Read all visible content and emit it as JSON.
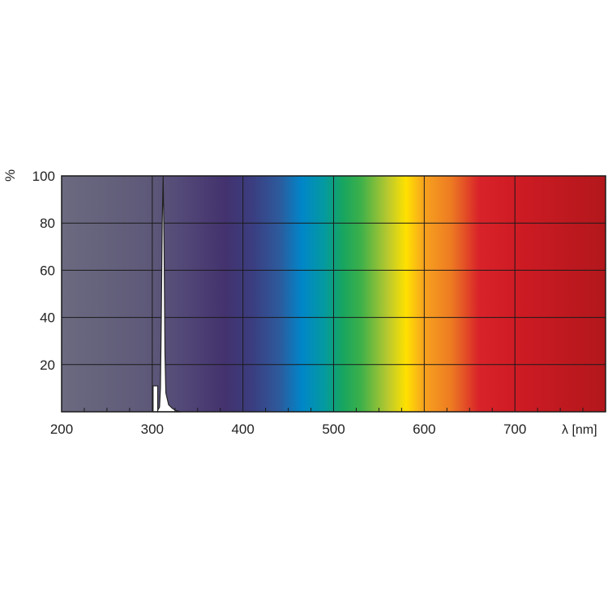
{
  "chart_data": {
    "type": "line",
    "title": "",
    "ylabel": "%",
    "xlabel": "λ [nm]",
    "xlim": [
      200,
      800
    ],
    "ylim": [
      0,
      100
    ],
    "x_ticks": [
      200,
      300,
      400,
      500,
      600,
      700
    ],
    "y_ticks": [
      20,
      40,
      60,
      80,
      100
    ],
    "x_tick_labels": [
      "200",
      "300",
      "400",
      "500",
      "600",
      "700"
    ],
    "y_tick_labels": [
      "20",
      "40",
      "60",
      "80",
      "100"
    ],
    "grid": true,
    "background": "visible spectrum color gradient",
    "series": [
      {
        "kind": "line-filled",
        "color": "#ffffff",
        "x": [
          305,
          308,
          309,
          310,
          311,
          312,
          313,
          314,
          315,
          318,
          322,
          326,
          331
        ],
        "y": [
          0,
          2,
          10,
          40,
          80,
          100,
          70,
          25,
          8,
          3,
          1.5,
          0.5,
          0
        ]
      },
      {
        "kind": "bar",
        "color": "#ffffff",
        "x_range": [
          300,
          306
        ],
        "y": 11
      }
    ],
    "spectrum_colors": [
      {
        "nm": 200,
        "color": "#6b6a80"
      },
      {
        "nm": 300,
        "color": "#5d5878"
      },
      {
        "nm": 330,
        "color": "#544a78"
      },
      {
        "nm": 380,
        "color": "#43326e"
      },
      {
        "nm": 410,
        "color": "#3b3d80"
      },
      {
        "nm": 440,
        "color": "#2d5a9c"
      },
      {
        "nm": 465,
        "color": "#0086c9"
      },
      {
        "nm": 490,
        "color": "#049aa0"
      },
      {
        "nm": 510,
        "color": "#17a560"
      },
      {
        "nm": 530,
        "color": "#3cb04a"
      },
      {
        "nm": 560,
        "color": "#b9c92e"
      },
      {
        "nm": 580,
        "color": "#ffe100"
      },
      {
        "nm": 600,
        "color": "#f7a21f"
      },
      {
        "nm": 630,
        "color": "#ed7a22"
      },
      {
        "nm": 660,
        "color": "#d9232a"
      },
      {
        "nm": 700,
        "color": "#cf1b24"
      },
      {
        "nm": 800,
        "color": "#b2171c"
      }
    ]
  }
}
